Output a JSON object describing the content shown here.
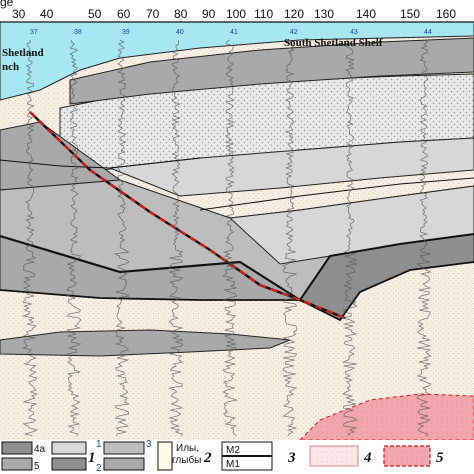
{
  "axis": {
    "ticks": [
      "30",
      "40",
      "50",
      "60",
      "70",
      "80",
      "90",
      "100",
      "110",
      "120",
      "130",
      "140",
      "150",
      "160"
    ],
    "corner_fragment": "ge"
  },
  "station_numbers": [
    "37",
    "38",
    "39",
    "40",
    "41",
    "42",
    "43",
    "44"
  ],
  "labels": {
    "shelf": "South Shetland Shelf",
    "trench_line1": "Shetland",
    "trench_line2": "nch"
  },
  "legend": {
    "item_4a": "4a",
    "item_5": "5",
    "num_1": "1",
    "sub_1": "1",
    "sub_2": "2",
    "sub_3": "3",
    "ily_line1": "Илы,",
    "ily_line2": "глыбы",
    "num_2": "2",
    "m2": "M2",
    "m1": "M1",
    "num_3": "3",
    "num_4": "4",
    "num_5": "5"
  },
  "colors": {
    "water": "#a7e7f2",
    "sediment_light": "#d7d7d7",
    "sediment_mid": "#a9a9a9",
    "sediment_dark": "#8f8f8f",
    "basement": "#f5ede2",
    "pink": "#f2a6ad",
    "fault_red": "#d11a1a"
  }
}
